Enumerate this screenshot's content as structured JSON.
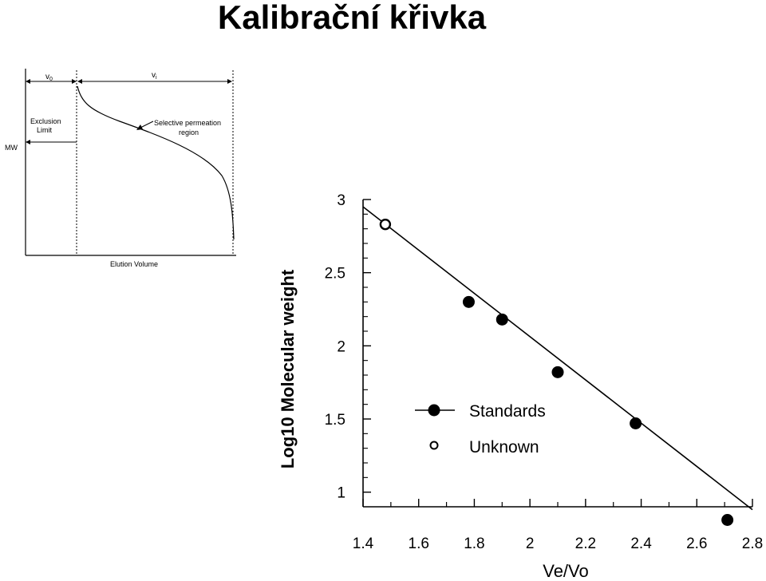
{
  "slide": {
    "title": "Kalibrační křivka"
  },
  "schematic": {
    "v0_label": "v",
    "v0_sub": "0",
    "vi_label": "v",
    "vi_sub": "i",
    "exclusion_line1": "Exclusion",
    "exclusion_line2": "Limit",
    "mw_label": "MW",
    "selective_line1": "Selective permeation",
    "selective_line2": "region",
    "elution_label": "Elution Volume"
  },
  "chart_data": {
    "type": "scatter",
    "xlabel": "Ve/Vo",
    "ylabel": "Log10 Molecular weight",
    "xlim": [
      1.4,
      2.8
    ],
    "ylim": [
      0.9,
      3.0
    ],
    "x_ticks": [
      "1.4",
      "1.6",
      "1.8",
      "2",
      "2.2",
      "2.4",
      "2.6",
      "2.8"
    ],
    "y_ticks": [
      "1",
      "1.5",
      "2",
      "2.5",
      "3"
    ],
    "grid": false,
    "legend_position": "center-left",
    "series": [
      {
        "name": "Standards",
        "marker": "filled-circle",
        "points": [
          [
            1.78,
            2.3
          ],
          [
            1.9,
            2.18
          ],
          [
            2.1,
            1.82
          ],
          [
            2.38,
            1.47
          ],
          [
            2.71,
            0.81
          ]
        ]
      },
      {
        "name": "Unknown",
        "marker": "open-circle",
        "points": [
          [
            1.48,
            2.83
          ]
        ]
      }
    ],
    "fit_line": {
      "x": [
        1.4,
        2.8
      ],
      "y": [
        2.95,
        0.88
      ]
    }
  }
}
